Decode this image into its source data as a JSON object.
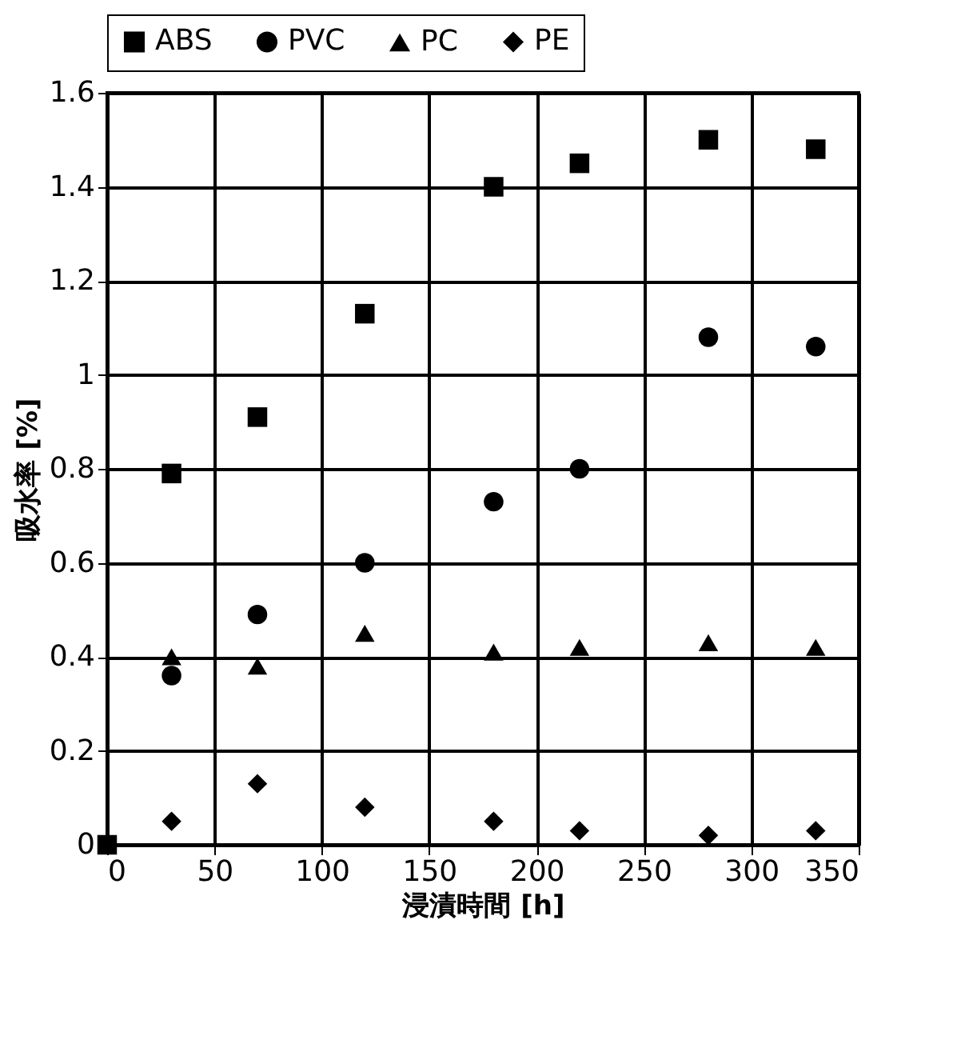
{
  "chart_data": {
    "type": "scatter",
    "xlabel": "浸漬時間 [h]",
    "ylabel": "吸水率 [%]",
    "xlim": [
      0,
      350
    ],
    "xticks": [
      0,
      50,
      100,
      150,
      200,
      250,
      300,
      350
    ],
    "ylim": [
      0,
      1.6
    ],
    "yticks": [
      0,
      0.2,
      0.4,
      0.6,
      0.8,
      1,
      1.2,
      1.4,
      1.6
    ],
    "grid": true,
    "legend": "top",
    "series": [
      {
        "name": "ABS",
        "color": "#000000",
        "marker": "square",
        "x": [
          0,
          30,
          70,
          120,
          180,
          220,
          280,
          330
        ],
        "values": [
          0,
          0.79,
          0.91,
          1.13,
          1.4,
          1.45,
          1.5,
          1.48
        ]
      },
      {
        "name": "PVC",
        "color": "#000000",
        "marker": "circle",
        "x": [
          30,
          70,
          120,
          180,
          220,
          280,
          330
        ],
        "values": [
          0.36,
          0.49,
          0.6,
          0.73,
          0.8,
          1.08,
          1.06
        ]
      },
      {
        "name": "PC",
        "color": "#000000",
        "marker": "triangle",
        "x": [
          30,
          70,
          120,
          180,
          220,
          280,
          330
        ],
        "values": [
          0.4,
          0.38,
          0.45,
          0.41,
          0.42,
          0.43,
          0.42
        ]
      },
      {
        "name": "PE",
        "color": "#000000",
        "marker": "diamond",
        "x": [
          30,
          70,
          120,
          180,
          220,
          280,
          330
        ],
        "values": [
          0.05,
          0.13,
          0.08,
          0.05,
          0.03,
          0.02,
          0.03
        ]
      }
    ]
  }
}
